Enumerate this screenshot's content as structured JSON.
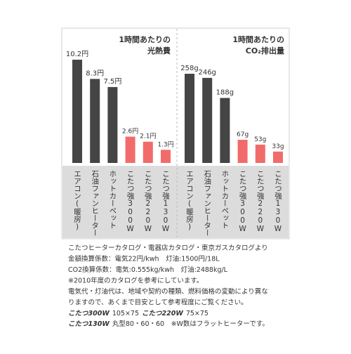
{
  "chart_data": [
    {
      "type": "bar",
      "title": [
        "1時間あたりの",
        "光熱費"
      ],
      "categories": [
        "エアコン(暖房)",
        "石油ファンヒーター",
        "ホットカーペット",
        "こたつ強300W",
        "こたつ強220W",
        "こたつ強130W"
      ],
      "values": [
        10.2,
        8.3,
        7.5,
        2.6,
        2.1,
        1.3
      ],
      "value_labels": [
        "10.2円",
        "8.3円",
        "7.5円",
        "2.6円",
        "2.1円",
        "1.3円"
      ],
      "colors": [
        "#454545",
        "#454545",
        "#454545",
        "#f26b6b",
        "#f26b6b",
        "#f26b6b"
      ]
    },
    {
      "type": "bar",
      "title": [
        "1時間あたりの",
        "CO₂排出量"
      ],
      "categories": [
        "エアコン(暖房)",
        "石油ファンヒーター",
        "ホットカーペット",
        "こたつ強300W",
        "こたつ強220W",
        "こたつ強130W"
      ],
      "values": [
        258,
        246,
        188,
        67,
        53,
        33
      ],
      "value_labels": [
        "258g",
        "246g",
        "188g",
        "67g",
        "53g",
        "33g"
      ],
      "colors": [
        "#454545",
        "#454545",
        "#454545",
        "#f26b6b",
        "#f26b6b",
        "#f26b6b"
      ]
    }
  ],
  "notes": [
    "こたつヒーターカタログ・電器店カタログ・東京ガスカタログより",
    "金額換算係数：電気22円/kwh　灯油:1500円/18L",
    "CO2換算係数：電気:0.555kg/kwh　灯油:2488kg/L",
    "※2010年度のカタログを参考にしています。",
    "電気代・灯油代は、地域や契約の種類、燃料価格の変動により異な",
    "りますので、あくまで目安として参考程度にご覧ください。"
  ],
  "sizes": [
    [
      "こたつ300W",
      "105×75",
      "こたつ220W",
      "75×75"
    ],
    [
      "こたつ130W",
      "丸型80・60・60　※W数はフラットヒーターです。"
    ]
  ]
}
